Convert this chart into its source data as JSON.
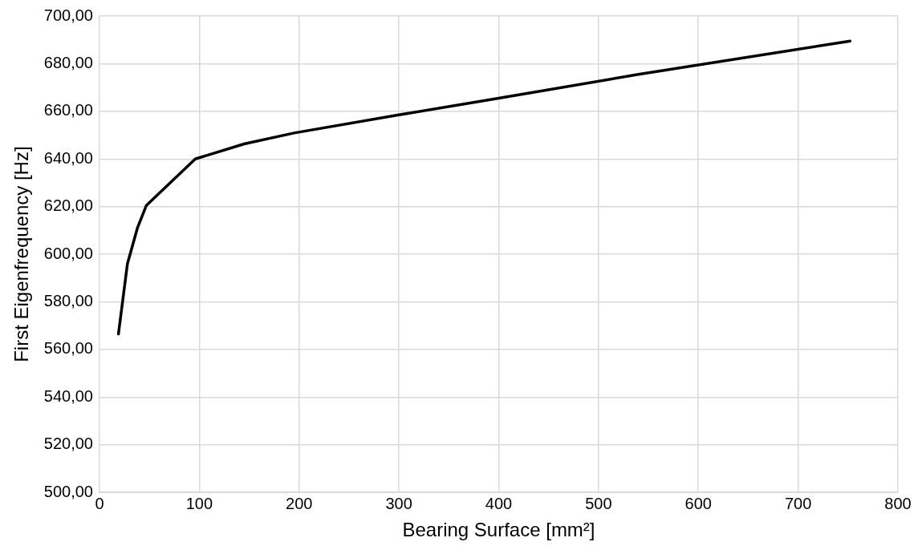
{
  "chart_data": {
    "type": "line",
    "xlabel": "Bearing Surface [mm²]",
    "ylabel": "First Eigenfrequency [Hz]",
    "x": [
      19,
      28,
      38,
      47,
      96,
      145,
      195,
      300,
      400,
      540,
      752
    ],
    "series": [
      {
        "color": "#000000",
        "values": [
          566.5,
          596,
          611,
          620.5,
          640,
          646.3,
          650.9,
          658.5,
          665.5,
          675.5,
          689.5
        ]
      }
    ],
    "xlim": [
      0,
      800
    ],
    "xticks": [
      0,
      100,
      200,
      300,
      400,
      500,
      600,
      700,
      800
    ],
    "ylim": [
      500,
      700
    ],
    "yticks": [
      {
        "value": 500,
        "label": "500,00"
      },
      {
        "value": 520,
        "label": "520,00"
      },
      {
        "value": 540,
        "label": "540,00"
      },
      {
        "value": 560,
        "label": "560,00"
      },
      {
        "value": 580,
        "label": "580,00"
      },
      {
        "value": 600,
        "label": "600,00"
      },
      {
        "value": 620,
        "label": "620,00"
      },
      {
        "value": 640,
        "label": "640,00"
      },
      {
        "value": 660,
        "label": "660,00"
      },
      {
        "value": 680,
        "label": "680,00"
      },
      {
        "value": 700,
        "label": "700,00"
      }
    ],
    "grid": true,
    "legend": false,
    "marker": "none",
    "line_style": "solid"
  }
}
